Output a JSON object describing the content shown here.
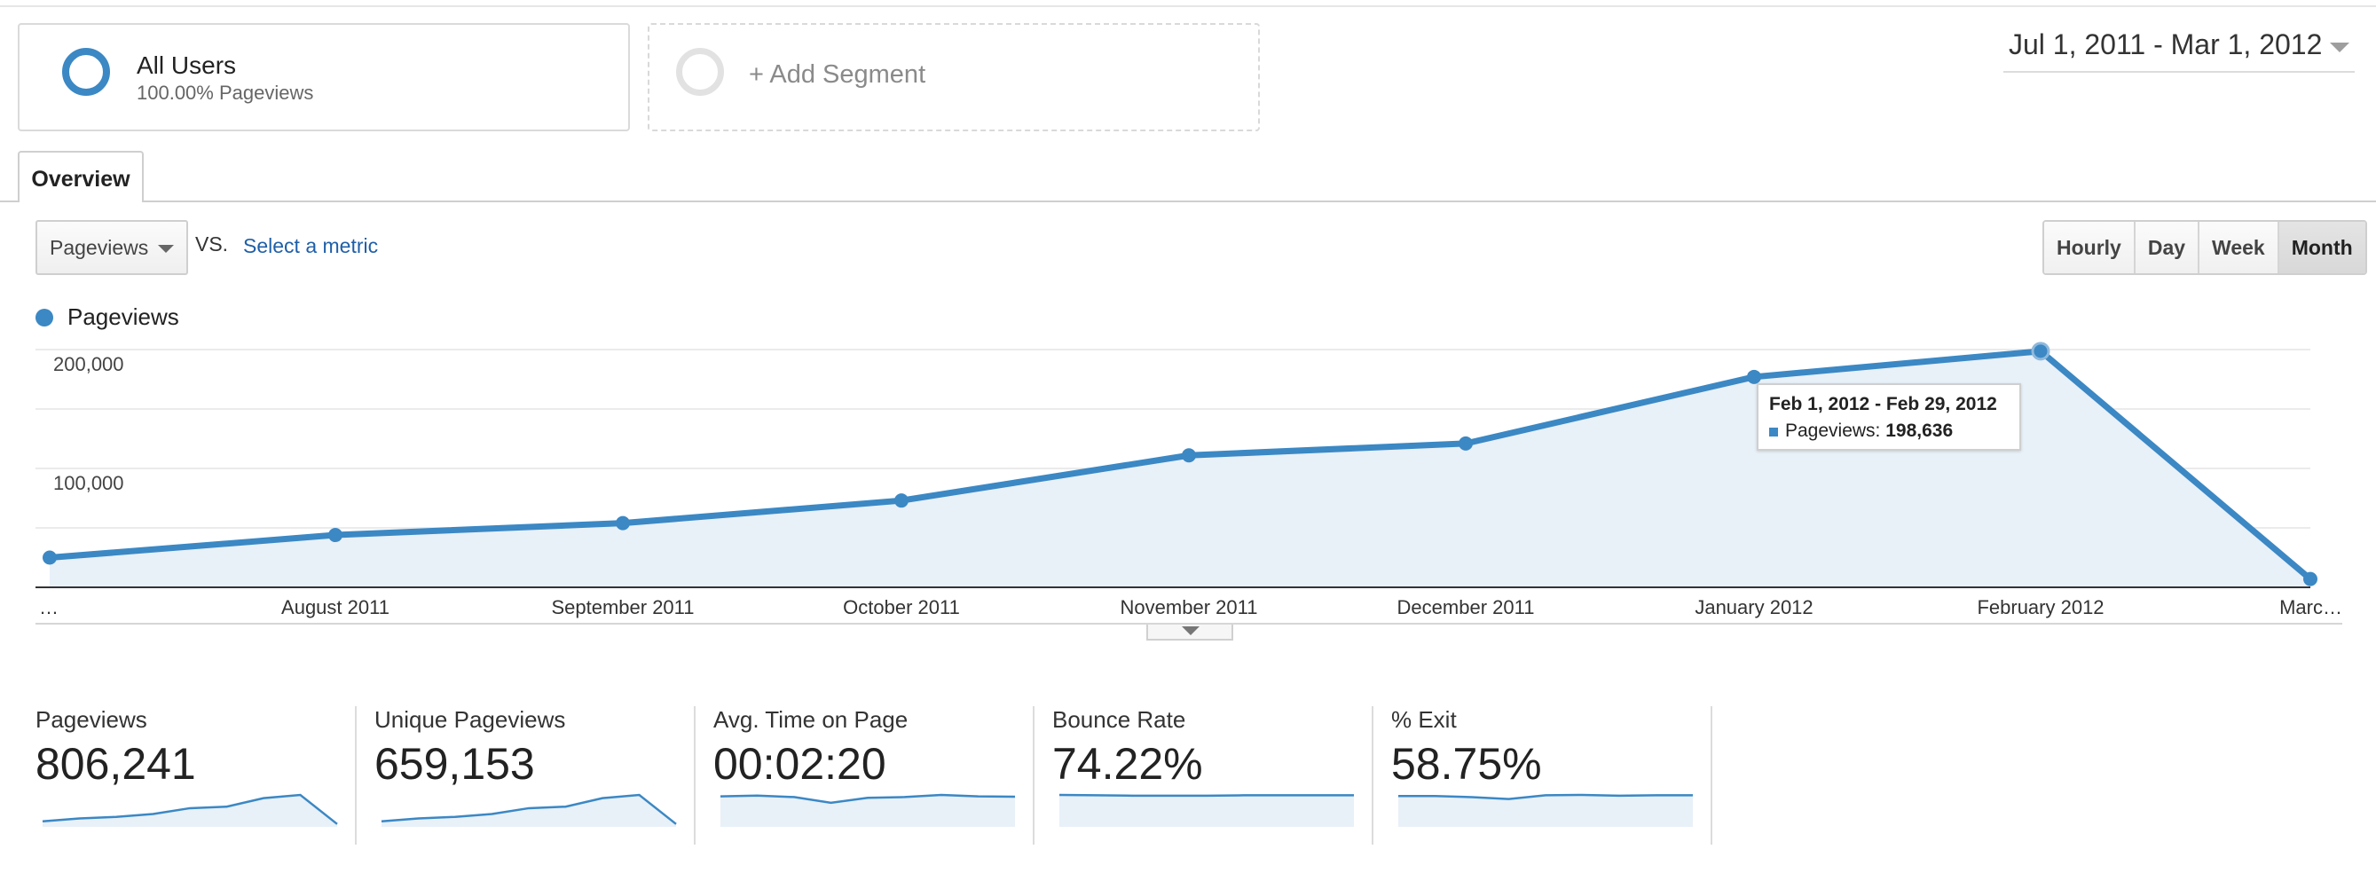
{
  "segments": {
    "all_users": {
      "name": "All Users",
      "subtitle": "100.00% Pageviews"
    },
    "add_segment": {
      "label": "+ Add Segment"
    }
  },
  "date_range": {
    "label": "Jul 1, 2011 - Mar 1, 2012"
  },
  "tabs": [
    {
      "label": "Overview",
      "active": true
    }
  ],
  "metric_selector": {
    "selected": "Pageviews",
    "vs_label": "VS.",
    "compare_link": "Select a metric"
  },
  "granularity": {
    "options": [
      "Hourly",
      "Day",
      "Week",
      "Month"
    ],
    "selected": "Month"
  },
  "legend": {
    "label": "Pageviews",
    "color": "#3b88c4"
  },
  "tooltip": {
    "date": "Feb 1, 2012 - Feb 29, 2012",
    "metric": "Pageviews:",
    "value": "198,636"
  },
  "chart_data": {
    "type": "area",
    "x": [
      "…",
      "August 2011",
      "September 2011",
      "October 2011",
      "November 2011",
      "December 2011",
      "January 2012",
      "February 2012",
      "Marc…"
    ],
    "series": [
      {
        "name": "Pageviews",
        "values": [
          25000,
          44000,
          54000,
          73000,
          111000,
          121000,
          177000,
          198636,
          7000
        ]
      }
    ],
    "y_ticks": [
      "200,000",
      "100,000"
    ],
    "ylim": [
      0,
      200000
    ],
    "grid": true,
    "line_color": "#3b88c4",
    "fill_color": "#e8f0f8"
  },
  "scorecards": [
    {
      "label": "Pageviews",
      "value": "806,241",
      "trend": [
        25,
        44,
        54,
        73,
        111,
        121,
        177,
        198,
        7
      ]
    },
    {
      "label": "Unique Pageviews",
      "value": "659,153",
      "trend": [
        25,
        44,
        54,
        73,
        111,
        121,
        177,
        198,
        7
      ]
    },
    {
      "label": "Avg. Time on Page",
      "value": "00:02:20",
      "trend": [
        80,
        82,
        78,
        62,
        76,
        78,
        84,
        80,
        79
      ]
    },
    {
      "label": "Bounce Rate",
      "value": "74.22%",
      "trend": [
        80,
        79,
        78,
        78,
        78,
        79,
        79,
        79,
        79
      ]
    },
    {
      "label": "% Exit",
      "value": "58.75%",
      "trend": [
        78,
        78,
        75,
        70,
        80,
        81,
        79,
        80,
        80
      ]
    }
  ]
}
